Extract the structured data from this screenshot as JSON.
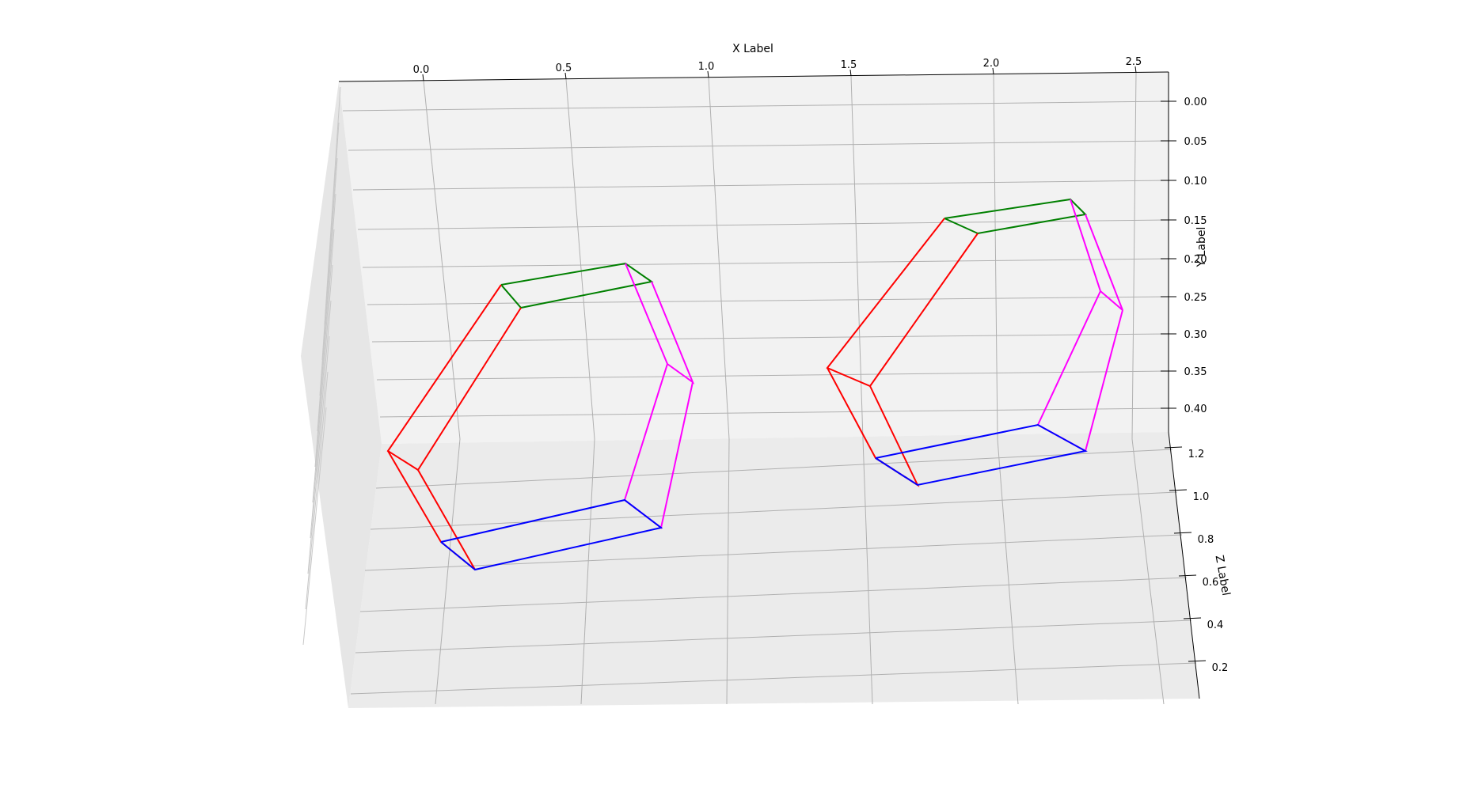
{
  "chart_data": {
    "type": "3d-wireframe",
    "xlabel": "X Label",
    "ylabel": "Y Label",
    "zlabel": "Z Label",
    "x_ticks": [
      "0.0",
      "0.5",
      "1.0",
      "1.5",
      "2.0",
      "2.5"
    ],
    "y_ticks": [
      "0.00",
      "0.05",
      "0.10",
      "0.15",
      "0.20",
      "0.25",
      "0.30",
      "0.35",
      "0.40"
    ],
    "z_ticks": [
      "1.2",
      "1.0",
      "0.8",
      "0.6",
      "0.4",
      "0.2"
    ],
    "grid": true,
    "colors": {
      "top": "#008000",
      "left": "#ff0000",
      "right": "#ff00ff",
      "bottom": "#0000ff",
      "grid": "#b0b0b0",
      "pane": "#f2f2f2"
    }
  }
}
